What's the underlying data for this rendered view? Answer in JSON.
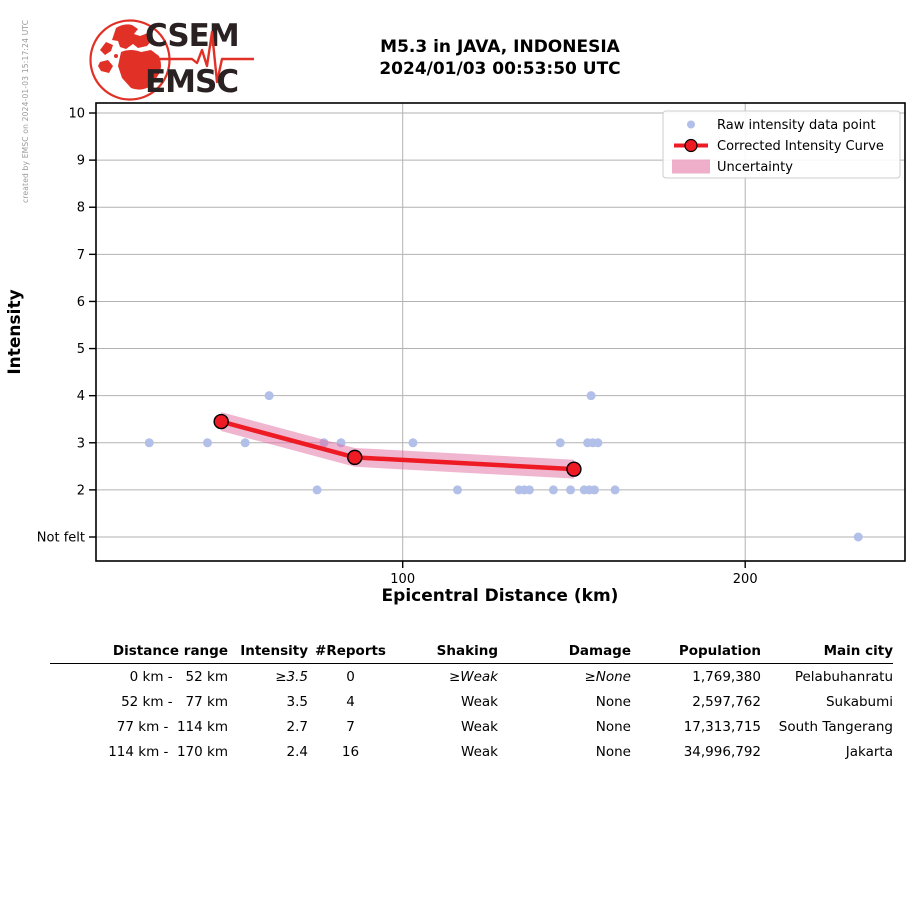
{
  "credit": "created by EMSC on 2024-01-03 15:17:24 UTC",
  "logo": {
    "org_top": "CSEM",
    "org_bottom": "EMSC"
  },
  "title": {
    "line1": "M5.3 in JAVA, INDONESIA",
    "line2": "2024/01/03 00:53:50 UTC"
  },
  "colors": {
    "raw_point": "#b2bfe9",
    "curve": "#ee1b25",
    "band": "#e26c9f",
    "grid": "#b2b2b2",
    "frame": "#000000",
    "logo_red": "#e13127",
    "logo_text": "#2a2123"
  },
  "chart_data": {
    "type": "scatter",
    "xlabel": "Epicentral Distance (km)",
    "ylabel": "Intensity",
    "xlim": [
      10,
      247
    ],
    "ylim": [
      0.5,
      10.2
    ],
    "grid": true,
    "x_ticks": [
      {
        "value": 100,
        "label": "100"
      },
      {
        "value": 200,
        "label": "200"
      }
    ],
    "y_ticks": [
      {
        "value": 1,
        "label": "Not felt"
      },
      {
        "value": 2,
        "label": "2"
      },
      {
        "value": 3,
        "label": "3"
      },
      {
        "value": 4,
        "label": "4"
      },
      {
        "value": 5,
        "label": "5"
      },
      {
        "value": 6,
        "label": "6"
      },
      {
        "value": 7,
        "label": "7"
      },
      {
        "value": 8,
        "label": "8"
      },
      {
        "value": 9,
        "label": "9"
      },
      {
        "value": 10,
        "label": "10"
      }
    ],
    "legend": {
      "position": "upper right",
      "entries": [
        {
          "label": "Raw intensity data point",
          "marker": "dot"
        },
        {
          "label": "Corrected Intensity Curve",
          "marker": "line-circle"
        },
        {
          "label": "Uncertainty",
          "marker": "band"
        }
      ]
    },
    "series": [
      {
        "name": "Raw intensity data point",
        "type": "scatter",
        "points": [
          [
            26,
            3
          ],
          [
            43,
            3
          ],
          [
            54,
            3
          ],
          [
            61,
            4
          ],
          [
            75,
            2
          ],
          [
            77,
            3
          ],
          [
            82,
            3
          ],
          [
            103,
            3
          ],
          [
            116,
            2
          ],
          [
            134,
            2
          ],
          [
            135.5,
            2
          ],
          [
            137,
            2
          ],
          [
            144,
            2
          ],
          [
            146,
            3
          ],
          [
            149,
            2
          ],
          [
            153,
            2
          ],
          [
            154,
            3
          ],
          [
            154.5,
            2
          ],
          [
            155,
            4
          ],
          [
            155.5,
            3
          ],
          [
            156,
            2
          ],
          [
            157,
            3
          ],
          [
            162,
            2
          ],
          [
            233,
            1
          ]
        ]
      },
      {
        "name": "Corrected Intensity Curve",
        "type": "line",
        "points": [
          [
            47,
            3.45
          ],
          [
            86,
            2.69
          ],
          [
            150,
            2.44
          ]
        ]
      },
      {
        "name": "Uncertainty",
        "type": "band",
        "around": "Corrected Intensity Curve",
        "half_width": 0.2
      }
    ]
  },
  "table": {
    "headers": [
      "Distance range",
      "Intensity",
      "#Reports",
      "Shaking",
      "Damage",
      "Population",
      "Main city"
    ],
    "rows": [
      {
        "range": "0 km -   52 km",
        "intensity": "≥3.5",
        "reports": "0",
        "shaking": "≥Weak",
        "damage": "≥None",
        "population": "1,769,380",
        "city": "Pelabuhanratu",
        "estimated": true
      },
      {
        "range": "52 km -   77 km",
        "intensity": "3.5",
        "reports": "4",
        "shaking": "Weak",
        "damage": "None",
        "population": "2,597,762",
        "city": "Sukabumi",
        "estimated": false
      },
      {
        "range": "77 km -  114 km",
        "intensity": "2.7",
        "reports": "7",
        "shaking": "Weak",
        "damage": "None",
        "population": "17,313,715",
        "city": "South Tangerang",
        "estimated": false
      },
      {
        "range": "114 km -  170 km",
        "intensity": "2.4",
        "reports": "16",
        "shaking": "Weak",
        "damage": "None",
        "population": "34,996,792",
        "city": "Jakarta",
        "estimated": false
      }
    ]
  }
}
